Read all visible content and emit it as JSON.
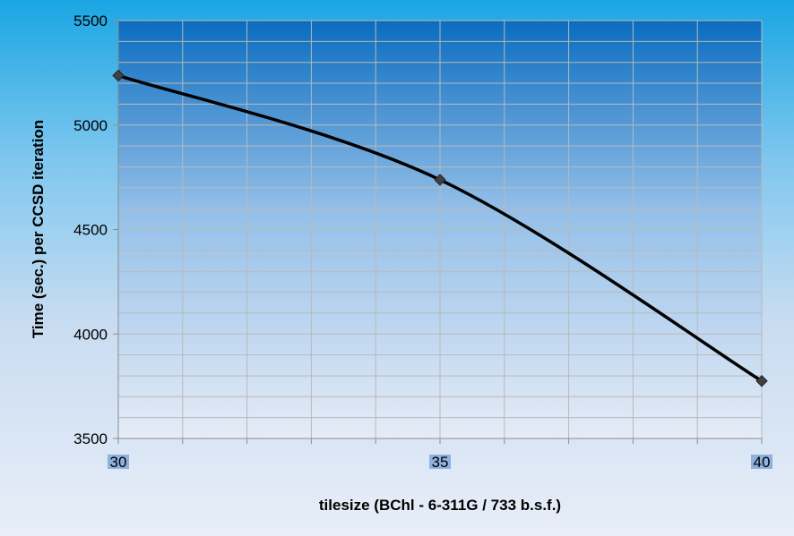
{
  "chart_data": {
    "type": "line",
    "title": "",
    "xlabel": "tilesize (BChl - 6-311G / 733 b.s.f.)",
    "ylabel": "Time  (sec.) per CCSD iteration",
    "x": [
      30,
      35,
      40
    ],
    "series": [
      {
        "values": [
          5237,
          4738,
          3775
        ]
      }
    ],
    "xlim": [
      30,
      40
    ],
    "ylim": [
      3500,
      5500
    ],
    "x_ticks": [
      "30",
      "35",
      "40"
    ],
    "y_ticks": [
      "5500",
      "5000",
      "4500",
      "4000",
      "3500"
    ],
    "grid": true,
    "smooth": true,
    "marker": "diamond",
    "line_color": "#000000",
    "marker_color": "#404040",
    "tick_highlight_color": "#8fb1de"
  }
}
